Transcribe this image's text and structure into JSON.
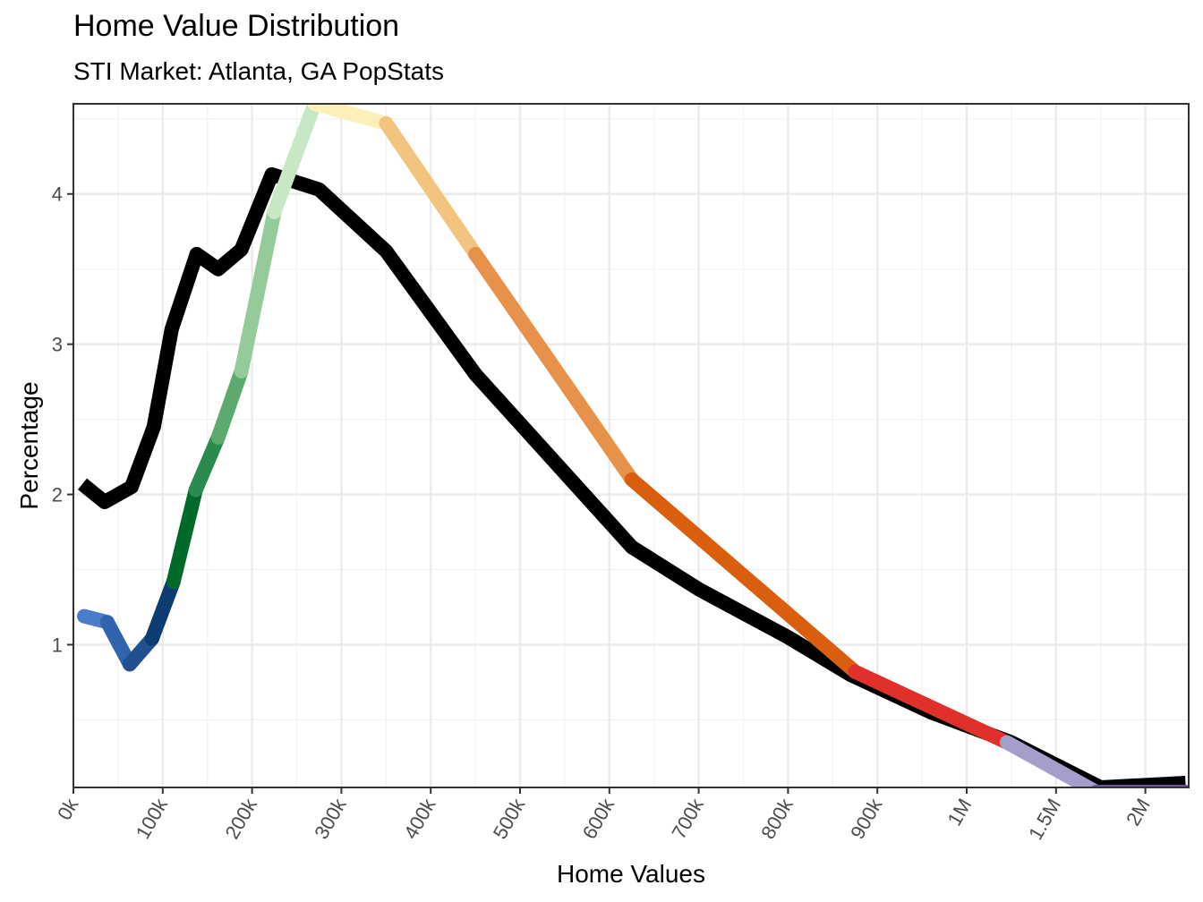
{
  "chart_data": {
    "type": "line",
    "title": "Home Value Distribution",
    "subtitle": "STI Market: Atlanta, GA PopStats",
    "xlabel": "Home Values",
    "ylabel": "Percentage",
    "x_ticks": [
      "0k",
      "100k",
      "200k",
      "300k",
      "400k",
      "500k",
      "600k",
      "700k",
      "800k",
      "900k",
      "1M",
      "1.5M",
      "2M"
    ],
    "y_ticks": [
      1,
      2,
      3,
      4
    ],
    "ylim": [
      0.05,
      4.6
    ],
    "grid": true,
    "x_categories": [
      "0k",
      "100k",
      "200k",
      "300k",
      "400k",
      "500k",
      "600k",
      "700k",
      "800k",
      "900k",
      "1M",
      "1.5M",
      "2M"
    ],
    "series": [
      {
        "color": "#000000",
        "points": [
          [
            0.1,
            2.07
          ],
          [
            0.35,
            1.95
          ],
          [
            0.65,
            2.05
          ],
          [
            0.9,
            2.45
          ],
          [
            1.1,
            3.1
          ],
          [
            1.38,
            3.6
          ],
          [
            1.62,
            3.5
          ],
          [
            1.88,
            3.63
          ],
          [
            2.22,
            4.13
          ],
          [
            2.75,
            4.03
          ],
          [
            3.5,
            3.62
          ],
          [
            4.5,
            2.8
          ],
          [
            6.25,
            1.65
          ],
          [
            7.0,
            1.37
          ],
          [
            8.0,
            1.05
          ],
          [
            8.7,
            0.8
          ],
          [
            9.6,
            0.55
          ],
          [
            10.5,
            0.35
          ],
          [
            11.5,
            0.05
          ],
          [
            12.45,
            0.08
          ]
        ]
      },
      {
        "segmented": true,
        "segments": [
          {
            "color": "#4a7cc7",
            "points": [
              [
                0.12,
                1.19
              ],
              [
                0.38,
                1.15
              ]
            ]
          },
          {
            "color": "#3264ad",
            "points": [
              [
                0.38,
                1.15
              ],
              [
                0.63,
                0.87
              ]
            ]
          },
          {
            "color": "#20508f",
            "points": [
              [
                0.63,
                0.87
              ],
              [
                0.88,
                1.04
              ]
            ]
          },
          {
            "color": "#0c3c72",
            "points": [
              [
                0.88,
                1.04
              ],
              [
                1.12,
                1.42
              ]
            ]
          },
          {
            "color": "#006a2a",
            "points": [
              [
                1.12,
                1.42
              ],
              [
                1.37,
                2.03
              ]
            ]
          },
          {
            "color": "#2b8a4e",
            "points": [
              [
                1.37,
                2.03
              ],
              [
                1.62,
                2.38
              ]
            ]
          },
          {
            "color": "#5daa6e",
            "points": [
              [
                1.62,
                2.38
              ],
              [
                1.88,
                2.82
              ]
            ]
          },
          {
            "color": "#95cb9a",
            "points": [
              [
                1.88,
                2.82
              ],
              [
                2.25,
                3.88
              ]
            ]
          },
          {
            "color": "#c8e7c4",
            "points": [
              [
                2.25,
                3.88
              ],
              [
                2.7,
                4.6
              ]
            ]
          },
          {
            "color": "#fbf0b8",
            "points": [
              [
                2.7,
                4.6
              ],
              [
                3.5,
                4.47
              ]
            ]
          },
          {
            "color": "#f2c47f",
            "points": [
              [
                3.5,
                4.47
              ],
              [
                4.5,
                3.6
              ]
            ]
          },
          {
            "color": "#e6924a",
            "points": [
              [
                4.5,
                3.6
              ],
              [
                6.25,
                2.1
              ]
            ]
          },
          {
            "color": "#d95f0e",
            "points": [
              [
                6.25,
                2.1
              ],
              [
                8.75,
                0.82
              ]
            ]
          },
          {
            "color": "#e0302c",
            "points": [
              [
                8.75,
                0.82
              ],
              [
                10.45,
                0.35
              ]
            ]
          },
          {
            "color": "#a49ecb",
            "points": [
              [
                10.45,
                0.35
              ],
              [
                11.45,
                0.02
              ]
            ]
          },
          {
            "color": "#6a51a3",
            "points": [
              [
                11.45,
                0.02
              ],
              [
                12.45,
                0.02
              ]
            ]
          }
        ]
      }
    ]
  }
}
